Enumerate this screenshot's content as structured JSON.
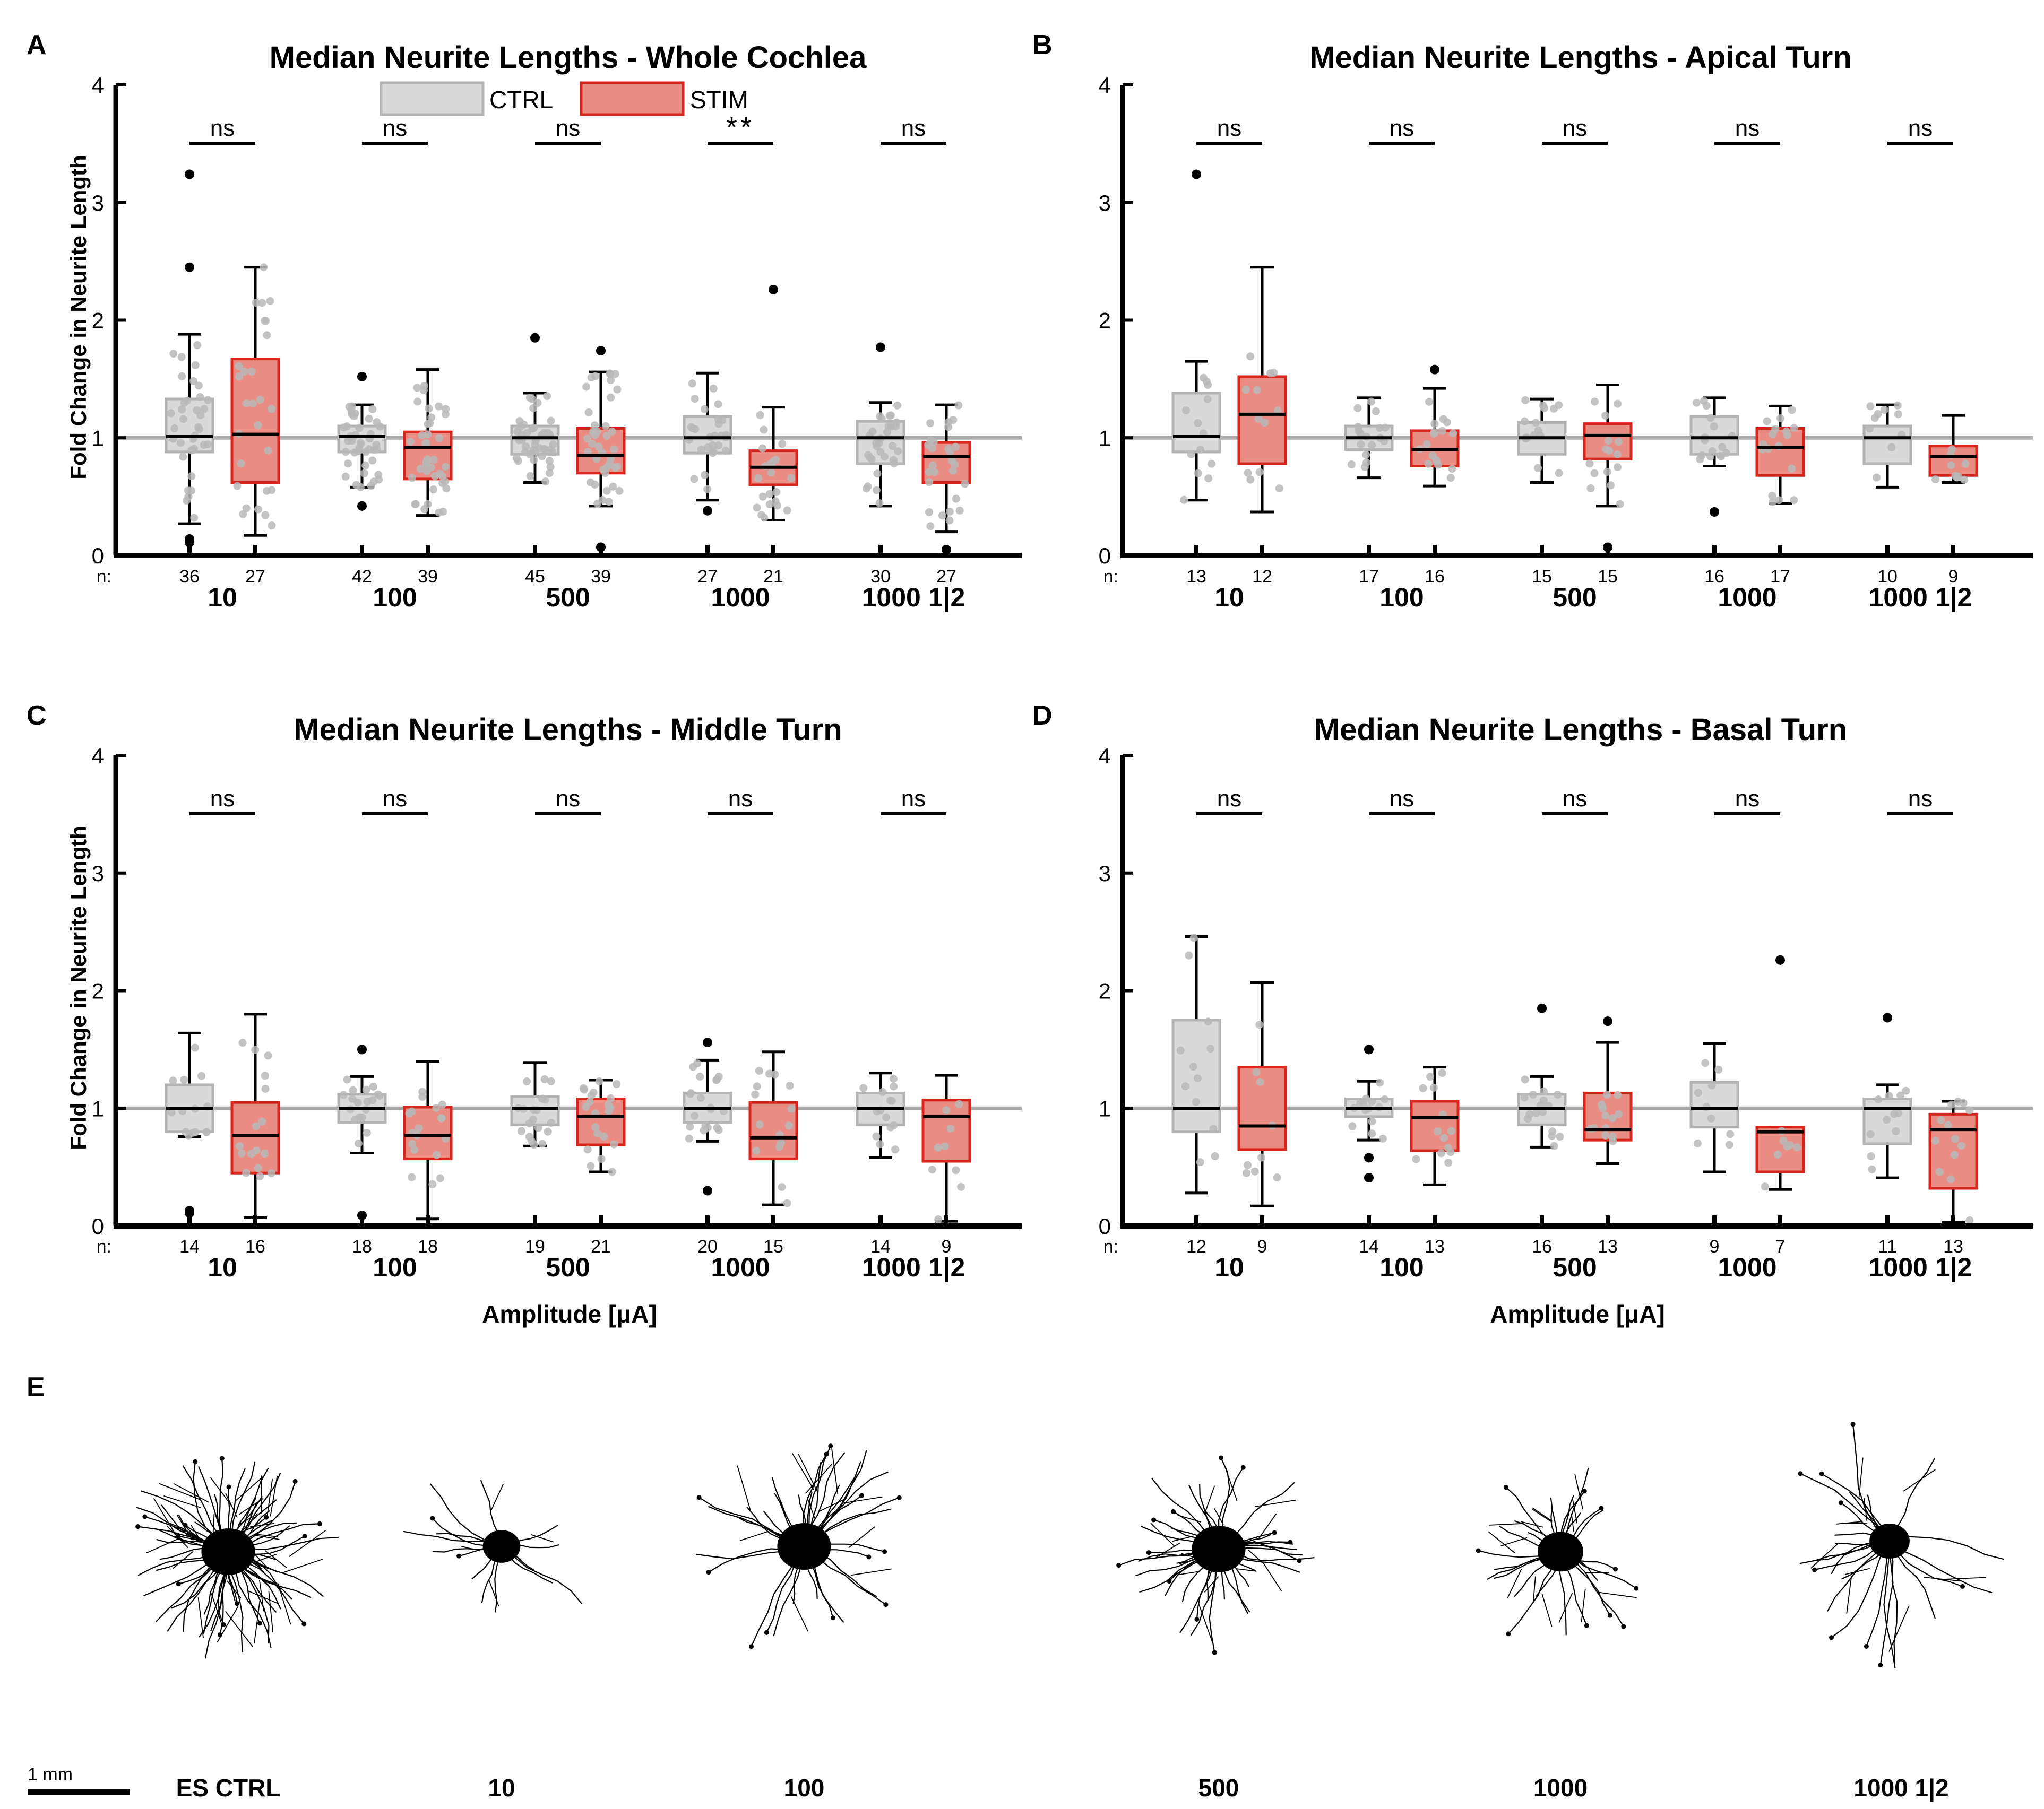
{
  "colors": {
    "ctrl_fill": "#d9d9d9",
    "ctrl_edge": "#b3b3b3",
    "stim_fill": "#ea8e85",
    "stim_edge": "#d7261e",
    "axis": "#000000",
    "refline": "#aaaaaa",
    "jitter": "#b8b8b8"
  },
  "legend": {
    "ctrl_label": "CTRL",
    "stim_label": "STIM"
  },
  "n_prefix": "n:",
  "amplitude_label": "Amplitude [μA]",
  "chart_data": [
    {
      "panel": "A",
      "type": "box",
      "title": "Median Neurite Lengths - Whole Cochlea",
      "ylabel": "Fold Change in Neurite Length",
      "xlabel": "",
      "ylim": [
        0,
        4
      ],
      "yticks": [
        "0",
        "1",
        "2",
        "3",
        "4"
      ],
      "reference_line": 1,
      "groups": [
        "10",
        "100",
        "500",
        "1000",
        "1000 1|2"
      ],
      "significance": [
        "ns",
        "ns",
        "ns",
        "**",
        "ns"
      ],
      "series": [
        {
          "name": "CTRL",
          "n": [
            "36",
            "42",
            "45",
            "27",
            "30"
          ],
          "boxes": [
            {
              "min": 0.27,
              "q1": 0.88,
              "median": 1.01,
              "q3": 1.33,
              "max": 1.88,
              "outliers": [
                3.24,
                2.45,
                0.14,
                0.11
              ]
            },
            {
              "min": 0.58,
              "q1": 0.88,
              "median": 1.01,
              "q3": 1.1,
              "max": 1.28,
              "outliers": [
                1.52,
                0.42
              ]
            },
            {
              "min": 0.62,
              "q1": 0.86,
              "median": 1.0,
              "q3": 1.1,
              "max": 1.38,
              "outliers": [
                1.85
              ]
            },
            {
              "min": 0.47,
              "q1": 0.87,
              "median": 1.0,
              "q3": 1.18,
              "max": 1.55,
              "outliers": [
                0.38
              ]
            },
            {
              "min": 0.42,
              "q1": 0.78,
              "median": 1.0,
              "q3": 1.14,
              "max": 1.3,
              "outliers": [
                1.77
              ]
            }
          ]
        },
        {
          "name": "STIM",
          "n": [
            "27",
            "39",
            "39",
            "21",
            "27"
          ],
          "boxes": [
            {
              "min": 0.17,
              "q1": 0.62,
              "median": 1.03,
              "q3": 1.67,
              "max": 2.45,
              "outliers": []
            },
            {
              "min": 0.34,
              "q1": 0.65,
              "median": 0.92,
              "q3": 1.05,
              "max": 1.58,
              "outliers": []
            },
            {
              "min": 0.42,
              "q1": 0.7,
              "median": 0.85,
              "q3": 1.08,
              "max": 1.56,
              "outliers": [
                1.74,
                0.07
              ]
            },
            {
              "min": 0.3,
              "q1": 0.6,
              "median": 0.75,
              "q3": 0.89,
              "max": 1.26,
              "outliers": [
                2.26
              ]
            },
            {
              "min": 0.2,
              "q1": 0.62,
              "median": 0.84,
              "q3": 0.96,
              "max": 1.28,
              "outliers": [
                0.05
              ]
            }
          ]
        }
      ]
    },
    {
      "panel": "B",
      "type": "box",
      "title": "Median Neurite Lengths - Apical Turn",
      "ylabel": "",
      "xlabel": "",
      "ylim": [
        0,
        4
      ],
      "yticks": [
        "0",
        "1",
        "2",
        "3",
        "4"
      ],
      "reference_line": 1,
      "groups": [
        "10",
        "100",
        "500",
        "1000",
        "1000 1|2"
      ],
      "significance": [
        "ns",
        "ns",
        "ns",
        "ns",
        "ns"
      ],
      "series": [
        {
          "name": "CTRL",
          "n": [
            "13",
            "17",
            "15",
            "16",
            "10"
          ],
          "boxes": [
            {
              "min": 0.47,
              "q1": 0.88,
              "median": 1.01,
              "q3": 1.38,
              "max": 1.65,
              "outliers": [
                3.24
              ]
            },
            {
              "min": 0.66,
              "q1": 0.9,
              "median": 1.0,
              "q3": 1.1,
              "max": 1.34,
              "outliers": []
            },
            {
              "min": 0.62,
              "q1": 0.86,
              "median": 1.0,
              "q3": 1.13,
              "max": 1.33,
              "outliers": []
            },
            {
              "min": 0.76,
              "q1": 0.86,
              "median": 1.0,
              "q3": 1.18,
              "max": 1.34,
              "outliers": [
                0.37
              ]
            },
            {
              "min": 0.58,
              "q1": 0.78,
              "median": 1.0,
              "q3": 1.1,
              "max": 1.28,
              "outliers": []
            }
          ]
        },
        {
          "name": "STIM",
          "n": [
            "12",
            "16",
            "15",
            "17",
            "9"
          ],
          "boxes": [
            {
              "min": 0.37,
              "q1": 0.78,
              "median": 1.2,
              "q3": 1.52,
              "max": 2.45,
              "outliers": []
            },
            {
              "min": 0.59,
              "q1": 0.76,
              "median": 0.9,
              "q3": 1.06,
              "max": 1.42,
              "outliers": [
                1.58
              ]
            },
            {
              "min": 0.42,
              "q1": 0.82,
              "median": 1.02,
              "q3": 1.12,
              "max": 1.45,
              "outliers": [
                0.07
              ]
            },
            {
              "min": 0.44,
              "q1": 0.68,
              "median": 0.92,
              "q3": 1.08,
              "max": 1.27,
              "outliers": []
            },
            {
              "min": 0.62,
              "q1": 0.68,
              "median": 0.84,
              "q3": 0.93,
              "max": 1.19,
              "outliers": []
            }
          ]
        }
      ]
    },
    {
      "panel": "C",
      "type": "box",
      "title": "Median Neurite Lengths - Middle Turn",
      "ylabel": "Fold Change in Neurite Length",
      "xlabel": "Amplitude [μA]",
      "ylim": [
        0,
        4
      ],
      "yticks": [
        "0",
        "1",
        "2",
        "3",
        "4"
      ],
      "reference_line": 1,
      "groups": [
        "10",
        "100",
        "500",
        "1000",
        "1000 1|2"
      ],
      "significance": [
        "ns",
        "ns",
        "ns",
        "ns",
        "ns"
      ],
      "series": [
        {
          "name": "CTRL",
          "n": [
            "14",
            "18",
            "19",
            "20",
            "14"
          ],
          "boxes": [
            {
              "min": 0.76,
              "q1": 0.8,
              "median": 1.0,
              "q3": 1.2,
              "max": 1.64,
              "outliers": [
                0.13,
                0.11
              ]
            },
            {
              "min": 0.62,
              "q1": 0.88,
              "median": 1.0,
              "q3": 1.12,
              "max": 1.27,
              "outliers": [
                1.5,
                0.09
              ]
            },
            {
              "min": 0.68,
              "q1": 0.86,
              "median": 1.0,
              "q3": 1.1,
              "max": 1.39,
              "outliers": []
            },
            {
              "min": 0.72,
              "q1": 0.88,
              "median": 1.0,
              "q3": 1.13,
              "max": 1.41,
              "outliers": [
                1.56,
                0.3
              ]
            },
            {
              "min": 0.58,
              "q1": 0.86,
              "median": 1.0,
              "q3": 1.13,
              "max": 1.3,
              "outliers": []
            }
          ]
        },
        {
          "name": "STIM",
          "n": [
            "16",
            "18",
            "21",
            "15",
            "9"
          ],
          "boxes": [
            {
              "min": 0.07,
              "q1": 0.45,
              "median": 0.77,
              "q3": 1.05,
              "max": 1.8,
              "outliers": []
            },
            {
              "min": 0.06,
              "q1": 0.57,
              "median": 0.77,
              "q3": 1.01,
              "max": 1.4,
              "outliers": []
            },
            {
              "min": 0.46,
              "q1": 0.69,
              "median": 0.93,
              "q3": 1.08,
              "max": 1.24,
              "outliers": []
            },
            {
              "min": 0.18,
              "q1": 0.57,
              "median": 0.75,
              "q3": 1.05,
              "max": 1.48,
              "outliers": []
            },
            {
              "min": 0.04,
              "q1": 0.55,
              "median": 0.93,
              "q3": 1.07,
              "max": 1.28,
              "outliers": []
            }
          ]
        }
      ]
    },
    {
      "panel": "D",
      "type": "box",
      "title": "Median Neurite Lengths - Basal Turn",
      "ylabel": "",
      "xlabel": "Amplitude [μA]",
      "ylim": [
        0,
        4
      ],
      "yticks": [
        "0",
        "1",
        "2",
        "3",
        "4"
      ],
      "reference_line": 1,
      "groups": [
        "10",
        "100",
        "500",
        "1000",
        "1000 1|2"
      ],
      "significance": [
        "ns",
        "ns",
        "ns",
        "ns",
        "ns"
      ],
      "series": [
        {
          "name": "CTRL",
          "n": [
            "12",
            "14",
            "16",
            "9",
            "11"
          ],
          "boxes": [
            {
              "min": 0.28,
              "q1": 0.8,
              "median": 1.0,
              "q3": 1.75,
              "max": 2.46,
              "outliers": []
            },
            {
              "min": 0.73,
              "q1": 0.93,
              "median": 1.0,
              "q3": 1.08,
              "max": 1.23,
              "outliers": [
                1.5,
                0.58,
                0.41
              ]
            },
            {
              "min": 0.67,
              "q1": 0.86,
              "median": 1.0,
              "q3": 1.12,
              "max": 1.27,
              "outliers": [
                1.85
              ]
            },
            {
              "min": 0.46,
              "q1": 0.84,
              "median": 1.0,
              "q3": 1.22,
              "max": 1.55,
              "outliers": []
            },
            {
              "min": 0.41,
              "q1": 0.7,
              "median": 1.0,
              "q3": 1.08,
              "max": 1.2,
              "outliers": [
                1.77
              ]
            }
          ]
        },
        {
          "name": "STIM",
          "n": [
            "9",
            "13",
            "13",
            "7",
            "13"
          ],
          "boxes": [
            {
              "min": 0.17,
              "q1": 0.65,
              "median": 0.85,
              "q3": 1.35,
              "max": 2.07,
              "outliers": []
            },
            {
              "min": 0.35,
              "q1": 0.64,
              "median": 0.92,
              "q3": 1.06,
              "max": 1.35,
              "outliers": []
            },
            {
              "min": 0.53,
              "q1": 0.73,
              "median": 0.82,
              "q3": 1.13,
              "max": 1.56,
              "outliers": [
                1.74
              ]
            },
            {
              "min": 0.31,
              "q1": 0.46,
              "median": 0.8,
              "q3": 0.84,
              "max": 0.84,
              "outliers": [
                2.26
              ]
            },
            {
              "min": 0.03,
              "q1": 0.32,
              "median": 0.82,
              "q3": 0.95,
              "max": 1.06,
              "outliers": []
            }
          ]
        }
      ]
    }
  ],
  "panel_e": {
    "panel_label": "E",
    "scale_bar_label": "1 mm",
    "neurons": [
      {
        "label": "ES CTRL",
        "density": 70,
        "spread": 1.0,
        "body": 1.0
      },
      {
        "label": "10",
        "density": 16,
        "spread": 0.95,
        "body": 0.7
      },
      {
        "label": "100",
        "density": 34,
        "spread": 1.05,
        "body": 1.0
      },
      {
        "label": "500",
        "density": 40,
        "spread": 0.95,
        "body": 1.0
      },
      {
        "label": "1000",
        "density": 26,
        "spread": 0.9,
        "body": 0.85
      },
      {
        "label": "1000 1|2",
        "density": 24,
        "spread": 1.15,
        "body": 0.75
      }
    ]
  }
}
